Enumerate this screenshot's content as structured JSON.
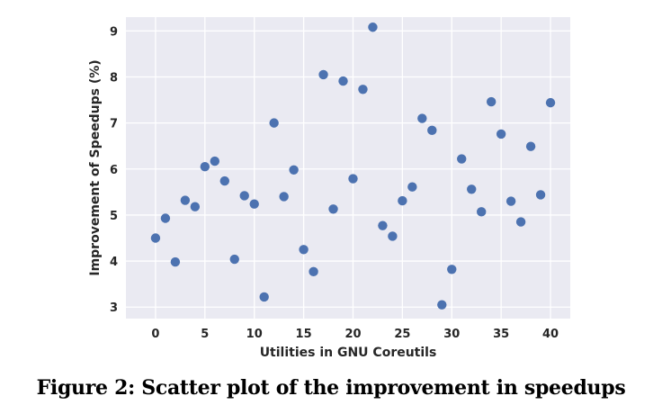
{
  "caption": "Figure 2: Scatter plot of the improvement in speedups",
  "colors": {
    "point": "#4c72b0",
    "plot_bg": "#eaeaf2",
    "grid": "#ffffff",
    "text": "#262626"
  },
  "chart_data": {
    "type": "scatter",
    "xlabel": "Utilities in GNU Coreutils",
    "ylabel": "Improvement of Speedups (%)",
    "xlim": [
      -3,
      42
    ],
    "ylim": [
      2.75,
      9.3
    ],
    "xticks": [
      0,
      5,
      10,
      15,
      20,
      25,
      30,
      35,
      40
    ],
    "yticks": [
      3,
      4,
      5,
      6,
      7,
      8,
      9
    ],
    "grid": true,
    "x": [
      0,
      1,
      2,
      3,
      4,
      5,
      6,
      7,
      8,
      9,
      10,
      11,
      12,
      13,
      14,
      15,
      16,
      17,
      18,
      19,
      20,
      21,
      22,
      23,
      24,
      25,
      26,
      27,
      28,
      29,
      30,
      31,
      32,
      33,
      34,
      35,
      36,
      37,
      38,
      39,
      40
    ],
    "y": [
      4.5,
      4.93,
      3.98,
      5.32,
      5.18,
      6.05,
      6.17,
      5.74,
      4.04,
      5.42,
      5.24,
      3.22,
      7.0,
      5.4,
      5.98,
      4.25,
      3.77,
      8.05,
      5.13,
      7.91,
      5.79,
      7.73,
      9.08,
      4.77,
      4.54,
      5.31,
      5.61,
      7.1,
      6.84,
      3.05,
      3.82,
      6.22,
      5.56,
      5.07,
      7.46,
      6.76,
      5.3,
      4.85,
      6.49,
      5.44,
      7.44
    ]
  }
}
